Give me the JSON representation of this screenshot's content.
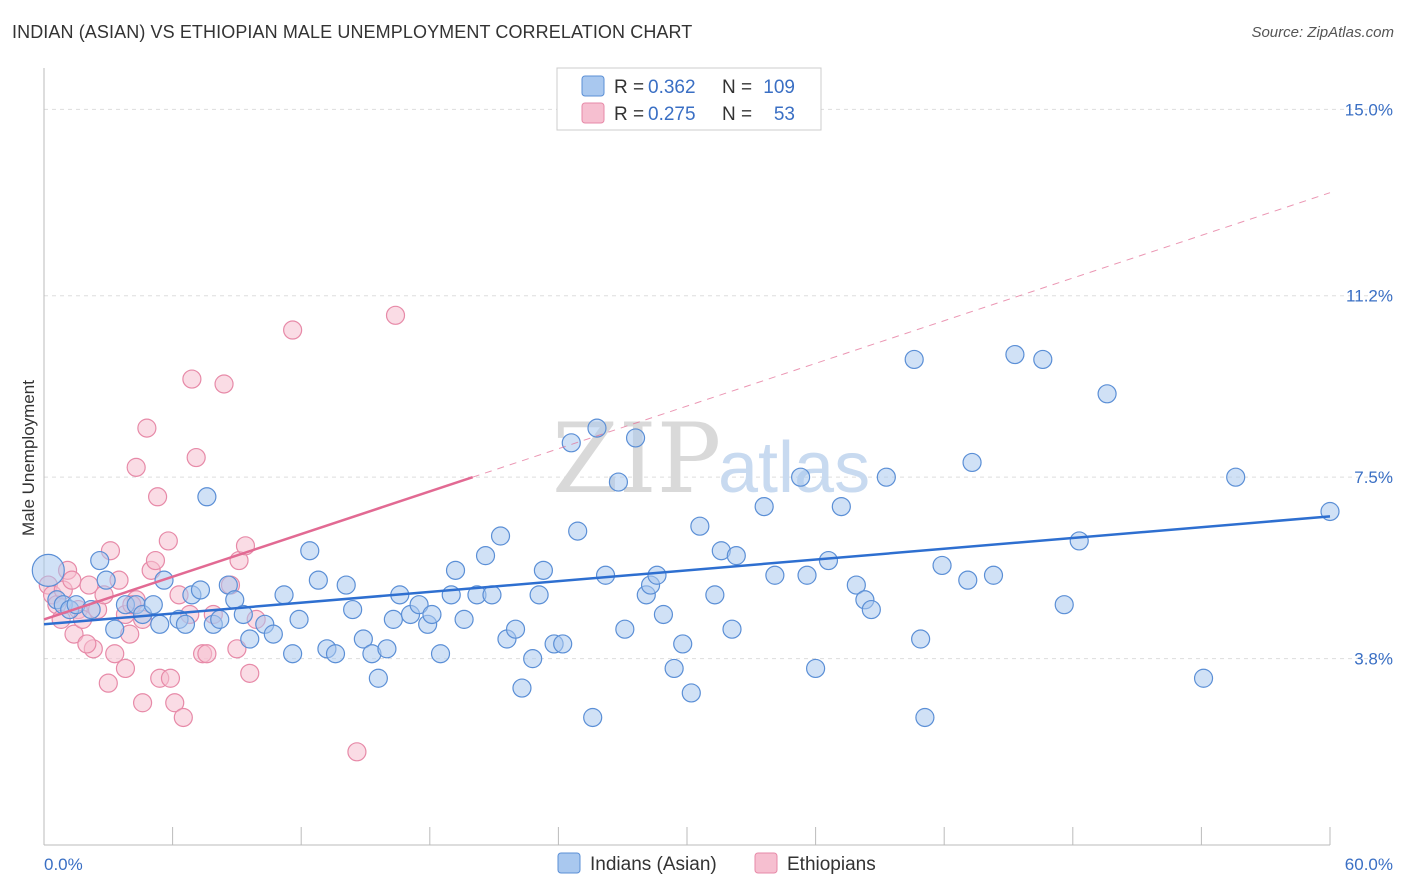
{
  "header": {
    "title": "INDIAN (ASIAN) VS ETHIOPIAN MALE UNEMPLOYMENT CORRELATION CHART",
    "source": "Source: ZipAtlas.com"
  },
  "watermark": {
    "zip": "ZIP",
    "atlas": "atlas"
  },
  "legend": {
    "series1": {
      "r_label": "R =",
      "r_value": "0.362",
      "n_label": "N =",
      "n_value": "109"
    },
    "series2": {
      "r_label": "R =",
      "r_value": "0.275",
      "n_label": "N =",
      "n_value": "53"
    }
  },
  "colors": {
    "blue_fill": "#a9c8ef",
    "blue_stroke": "#5b8fd6",
    "blue_line": "#2e6fd0",
    "pink_fill": "#f6bfd0",
    "pink_stroke": "#e78aa8",
    "pink_line": "#e26a93",
    "axis_text": "#3a6fc4",
    "grid": "#dddddd"
  },
  "chart_data": {
    "type": "scatter",
    "title": "INDIAN (ASIAN) VS ETHIOPIAN MALE UNEMPLOYMENT CORRELATION CHART",
    "xlabel": "",
    "ylabel": "Male Unemployment",
    "xlim": [
      0,
      60
    ],
    "ylim": [
      0,
      15.7
    ],
    "x_tick_labels": [
      "0.0%",
      "60.0%"
    ],
    "y_ticks": [
      3.8,
      7.5,
      11.2,
      15.0
    ],
    "y_tick_labels": [
      "3.8%",
      "7.5%",
      "11.2%",
      "15.0%"
    ],
    "series": [
      {
        "name": "Indians (Asian)",
        "color": "#a9c8ef",
        "points": [
          [
            0.2,
            5.6
          ],
          [
            0.6,
            5.0
          ],
          [
            0.9,
            4.9
          ],
          [
            1.2,
            4.8
          ],
          [
            1.5,
            4.9
          ],
          [
            2.2,
            4.8
          ],
          [
            2.6,
            5.8
          ],
          [
            2.9,
            5.4
          ],
          [
            3.3,
            4.4
          ],
          [
            3.8,
            4.9
          ],
          [
            4.3,
            4.9
          ],
          [
            4.6,
            4.7
          ],
          [
            5.1,
            4.9
          ],
          [
            5.4,
            4.5
          ],
          [
            5.6,
            5.4
          ],
          [
            6.3,
            4.6
          ],
          [
            6.6,
            4.5
          ],
          [
            6.9,
            5.1
          ],
          [
            7.3,
            5.2
          ],
          [
            7.6,
            7.1
          ],
          [
            7.9,
            4.5
          ],
          [
            8.2,
            4.6
          ],
          [
            8.6,
            5.3
          ],
          [
            8.9,
            5.0
          ],
          [
            9.3,
            4.7
          ],
          [
            9.6,
            4.2
          ],
          [
            10.3,
            4.5
          ],
          [
            10.7,
            4.3
          ],
          [
            11.2,
            5.1
          ],
          [
            11.6,
            3.9
          ],
          [
            11.9,
            4.6
          ],
          [
            12.4,
            6.0
          ],
          [
            12.8,
            5.4
          ],
          [
            13.2,
            4.0
          ],
          [
            13.6,
            3.9
          ],
          [
            14.1,
            5.3
          ],
          [
            14.4,
            4.8
          ],
          [
            14.9,
            4.2
          ],
          [
            15.3,
            3.9
          ],
          [
            15.6,
            3.4
          ],
          [
            16.0,
            4.0
          ],
          [
            16.3,
            4.6
          ],
          [
            16.6,
            5.1
          ],
          [
            17.1,
            4.7
          ],
          [
            17.5,
            4.9
          ],
          [
            17.9,
            4.5
          ],
          [
            18.1,
            4.7
          ],
          [
            18.5,
            3.9
          ],
          [
            19.0,
            5.1
          ],
          [
            19.2,
            5.6
          ],
          [
            19.6,
            4.6
          ],
          [
            20.2,
            5.1
          ],
          [
            20.6,
            5.9
          ],
          [
            20.9,
            5.1
          ],
          [
            21.3,
            6.3
          ],
          [
            21.6,
            4.2
          ],
          [
            22.0,
            4.4
          ],
          [
            22.3,
            3.2
          ],
          [
            22.8,
            3.8
          ],
          [
            23.1,
            5.1
          ],
          [
            23.3,
            5.6
          ],
          [
            23.8,
            4.1
          ],
          [
            24.2,
            4.1
          ],
          [
            24.6,
            8.2
          ],
          [
            24.9,
            6.4
          ],
          [
            25.6,
            2.6
          ],
          [
            25.8,
            8.5
          ],
          [
            26.2,
            5.5
          ],
          [
            26.8,
            7.4
          ],
          [
            27.1,
            4.4
          ],
          [
            27.6,
            8.3
          ],
          [
            28.1,
            5.1
          ],
          [
            28.3,
            5.3
          ],
          [
            28.6,
            5.5
          ],
          [
            28.9,
            4.7
          ],
          [
            29.4,
            3.6
          ],
          [
            29.8,
            4.1
          ],
          [
            30.2,
            3.1
          ],
          [
            30.6,
            6.5
          ],
          [
            31.3,
            5.1
          ],
          [
            31.6,
            6.0
          ],
          [
            32.1,
            4.4
          ],
          [
            32.3,
            5.9
          ],
          [
            33.6,
            6.9
          ],
          [
            34.1,
            5.5
          ],
          [
            35.3,
            7.5
          ],
          [
            35.6,
            5.5
          ],
          [
            36.0,
            3.6
          ],
          [
            36.6,
            5.8
          ],
          [
            37.2,
            6.9
          ],
          [
            37.9,
            5.3
          ],
          [
            38.3,
            5.0
          ],
          [
            38.6,
            4.8
          ],
          [
            39.3,
            7.5
          ],
          [
            40.6,
            9.9
          ],
          [
            40.9,
            4.2
          ],
          [
            41.1,
            2.6
          ],
          [
            41.9,
            5.7
          ],
          [
            43.1,
            5.4
          ],
          [
            43.3,
            7.8
          ],
          [
            44.3,
            5.5
          ],
          [
            45.3,
            10.0
          ],
          [
            46.6,
            9.9
          ],
          [
            47.6,
            4.9
          ],
          [
            48.3,
            6.2
          ],
          [
            49.6,
            9.2
          ],
          [
            54.1,
            3.4
          ],
          [
            55.6,
            7.5
          ],
          [
            60.0,
            6.8
          ]
        ]
      },
      {
        "name": "Ethiopians",
        "color": "#f6bfd0",
        "points": [
          [
            0.2,
            5.3
          ],
          [
            0.4,
            5.1
          ],
          [
            0.6,
            4.9
          ],
          [
            0.9,
            5.2
          ],
          [
            1.1,
            5.6
          ],
          [
            1.4,
            4.3
          ],
          [
            1.6,
            4.8
          ],
          [
            1.8,
            4.6
          ],
          [
            2.1,
            5.3
          ],
          [
            2.3,
            4.0
          ],
          [
            2.5,
            4.8
          ],
          [
            2.8,
            5.1
          ],
          [
            3.0,
            3.3
          ],
          [
            3.1,
            6.0
          ],
          [
            3.5,
            5.4
          ],
          [
            3.8,
            3.6
          ],
          [
            3.8,
            4.7
          ],
          [
            4.0,
            4.3
          ],
          [
            4.3,
            5.0
          ],
          [
            4.3,
            7.7
          ],
          [
            4.6,
            4.6
          ],
          [
            4.6,
            2.9
          ],
          [
            4.8,
            8.5
          ],
          [
            5.0,
            5.6
          ],
          [
            5.2,
            5.8
          ],
          [
            5.3,
            7.1
          ],
          [
            5.4,
            3.4
          ],
          [
            5.8,
            6.2
          ],
          [
            5.9,
            3.4
          ],
          [
            6.1,
            2.9
          ],
          [
            6.3,
            5.1
          ],
          [
            6.5,
            2.6
          ],
          [
            6.9,
            9.5
          ],
          [
            7.1,
            7.9
          ],
          [
            7.4,
            3.9
          ],
          [
            7.6,
            3.9
          ],
          [
            7.9,
            4.7
          ],
          [
            8.4,
            9.4
          ],
          [
            8.7,
            5.3
          ],
          [
            9.1,
            5.8
          ],
          [
            9.4,
            6.1
          ],
          [
            9.6,
            3.5
          ],
          [
            9.9,
            4.6
          ],
          [
            11.6,
            10.5
          ],
          [
            14.6,
            1.9
          ],
          [
            16.4,
            10.8
          ],
          [
            0.8,
            4.6
          ],
          [
            1.3,
            5.4
          ],
          [
            2.0,
            4.1
          ],
          [
            3.3,
            3.9
          ],
          [
            4.1,
            4.9
          ],
          [
            6.8,
            4.7
          ],
          [
            9.0,
            4.0
          ]
        ]
      }
    ],
    "trendlines": [
      {
        "series": "Indians (Asian)",
        "x": [
          0,
          60
        ],
        "y": [
          4.5,
          6.7
        ],
        "style": "solid"
      },
      {
        "series": "Ethiopians",
        "x": [
          0,
          20
        ],
        "y": [
          4.6,
          7.5
        ],
        "style": "solid"
      },
      {
        "series": "Ethiopians",
        "x": [
          20,
          60
        ],
        "y": [
          7.5,
          13.3
        ],
        "style": "dashed"
      }
    ]
  }
}
